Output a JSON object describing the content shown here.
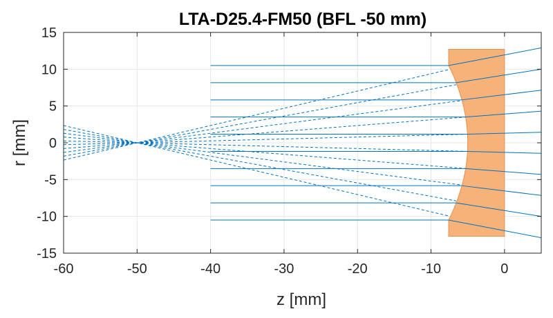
{
  "chart_data": {
    "type": "line",
    "title": "LTA-D25.4-FM50 (BFL -50 mm)",
    "xlabel": "z [mm]",
    "ylabel": "r [mm]",
    "xlim": [
      -60,
      5
    ],
    "ylim": [
      -15,
      15
    ],
    "xticks": [
      -60,
      -50,
      -40,
      -30,
      -20,
      -10,
      0
    ],
    "yticks": [
      -15,
      -10,
      -5,
      0,
      5,
      10,
      15
    ],
    "xtick_labels": [
      "-60",
      "-50",
      "-40",
      "-30",
      "-20",
      "-10",
      "0"
    ],
    "ytick_labels": [
      "-15",
      "-10",
      "-5",
      "0",
      "5",
      "10",
      "15"
    ],
    "grid": true,
    "ray_color": "#0072bd",
    "lens_color": "#f7b27a",
    "lens_edge_color": "#e8904a",
    "lens": {
      "z_back": 0,
      "z_edge": -7.6,
      "z_center": -5.0,
      "aperture_radius": 12.7,
      "clear_radius": 10.5
    },
    "rays": {
      "z_start": -40,
      "heights": [
        10.5,
        8.17,
        5.83,
        3.5,
        1.17,
        -1.17,
        -3.5,
        -5.83,
        -8.17,
        -10.5
      ],
      "virtual_focus": [
        -50,
        0
      ],
      "virtual_trace_start": -60,
      "exit_z": 5,
      "exit_heights": [
        12.9,
        10.0,
        7.15,
        4.3,
        1.43,
        -1.43,
        -4.3,
        -7.15,
        -10.0,
        -12.9
      ]
    }
  }
}
